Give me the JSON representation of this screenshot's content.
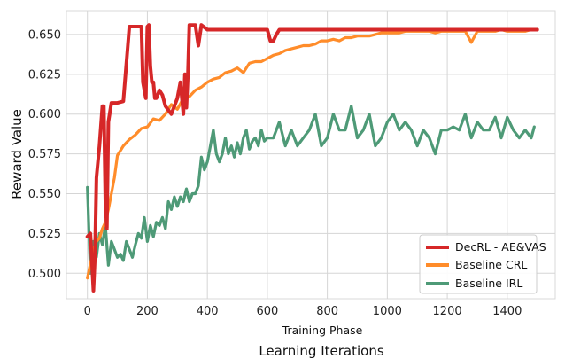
{
  "chart_data": {
    "type": "line",
    "title": "",
    "xlabel": "Training Phase",
    "xlabel_secondary": "Learning Iterations",
    "ylabel": "Reward Value",
    "xlim": [
      -70,
      1560
    ],
    "ylim": [
      0.484,
      0.665
    ],
    "x_ticks": [
      0,
      200,
      400,
      600,
      800,
      1000,
      1200,
      1400
    ],
    "x_tick_labels": [
      "0",
      "200",
      "400",
      "600",
      "800",
      "1000",
      "1200",
      "1400"
    ],
    "y_ticks": [
      0.5,
      0.525,
      0.55,
      0.575,
      0.6,
      0.625,
      0.65
    ],
    "y_tick_labels": [
      "0.500",
      "0.525",
      "0.550",
      "0.575",
      "0.600",
      "0.625",
      "0.650"
    ],
    "grid": true,
    "legend_position": "bottom-right",
    "series": [
      {
        "name": "DecRL - AE&VAS",
        "color": "#d62728",
        "x": [
          0,
          10,
          20,
          25,
          30,
          40,
          50,
          55,
          60,
          65,
          70,
          80,
          90,
          100,
          120,
          140,
          150,
          170,
          180,
          185,
          195,
          200,
          205,
          210,
          215,
          220,
          225,
          230,
          240,
          250,
          260,
          280,
          300,
          310,
          320,
          325,
          330,
          335,
          340,
          350,
          360,
          370,
          380,
          400,
          600,
          610,
          620,
          630,
          640,
          700,
          800,
          1000,
          1200,
          1400,
          1500
        ],
        "y": [
          0.523,
          0.525,
          0.489,
          0.51,
          0.56,
          0.58,
          0.605,
          0.605,
          0.545,
          0.528,
          0.595,
          0.607,
          0.607,
          0.607,
          0.608,
          0.655,
          0.655,
          0.655,
          0.655,
          0.62,
          0.61,
          0.655,
          0.656,
          0.63,
          0.62,
          0.62,
          0.61,
          0.61,
          0.615,
          0.612,
          0.605,
          0.6,
          0.61,
          0.62,
          0.6,
          0.625,
          0.604,
          0.625,
          0.656,
          0.656,
          0.656,
          0.643,
          0.656,
          0.653,
          0.653,
          0.646,
          0.646,
          0.65,
          0.653,
          0.653,
          0.653,
          0.653,
          0.653,
          0.653,
          0.653
        ]
      },
      {
        "name": "Baseline CRL",
        "color": "#ff8c2a",
        "x": [
          0,
          10,
          20,
          30,
          40,
          50,
          60,
          70,
          80,
          90,
          100,
          120,
          140,
          160,
          180,
          200,
          220,
          240,
          260,
          280,
          300,
          320,
          340,
          360,
          380,
          400,
          420,
          440,
          460,
          480,
          500,
          520,
          540,
          560,
          580,
          600,
          620,
          640,
          660,
          680,
          700,
          720,
          740,
          760,
          780,
          800,
          820,
          840,
          860,
          880,
          900,
          920,
          940,
          960,
          980,
          1000,
          1020,
          1040,
          1060,
          1080,
          1100,
          1120,
          1140,
          1160,
          1180,
          1200,
          1220,
          1240,
          1260,
          1280,
          1300,
          1320,
          1340,
          1360,
          1380,
          1400,
          1420,
          1440,
          1460,
          1480,
          1500
        ],
        "y": [
          0.497,
          0.506,
          0.515,
          0.52,
          0.522,
          0.528,
          0.532,
          0.54,
          0.55,
          0.56,
          0.574,
          0.58,
          0.584,
          0.587,
          0.591,
          0.592,
          0.597,
          0.596,
          0.6,
          0.606,
          0.603,
          0.61,
          0.611,
          0.615,
          0.617,
          0.62,
          0.622,
          0.623,
          0.626,
          0.627,
          0.629,
          0.626,
          0.632,
          0.633,
          0.633,
          0.635,
          0.637,
          0.638,
          0.64,
          0.641,
          0.642,
          0.643,
          0.643,
          0.644,
          0.646,
          0.646,
          0.647,
          0.646,
          0.648,
          0.648,
          0.649,
          0.649,
          0.649,
          0.65,
          0.651,
          0.651,
          0.651,
          0.651,
          0.652,
          0.652,
          0.652,
          0.652,
          0.652,
          0.651,
          0.652,
          0.652,
          0.652,
          0.652,
          0.652,
          0.645,
          0.652,
          0.652,
          0.652,
          0.652,
          0.653,
          0.652,
          0.652,
          0.652,
          0.652,
          0.653,
          0.653
        ]
      },
      {
        "name": "Baseline IRL",
        "color": "#4e9a77",
        "x": [
          0,
          10,
          20,
          30,
          40,
          50,
          60,
          70,
          80,
          90,
          100,
          110,
          120,
          130,
          140,
          150,
          160,
          170,
          180,
          190,
          200,
          210,
          220,
          230,
          240,
          250,
          260,
          270,
          280,
          290,
          300,
          310,
          320,
          330,
          340,
          350,
          360,
          370,
          380,
          390,
          400,
          410,
          420,
          430,
          440,
          450,
          460,
          470,
          480,
          490,
          500,
          510,
          520,
          530,
          540,
          550,
          560,
          570,
          580,
          590,
          600,
          620,
          640,
          660,
          680,
          700,
          720,
          740,
          760,
          780,
          800,
          820,
          840,
          860,
          880,
          900,
          920,
          940,
          960,
          980,
          1000,
          1020,
          1040,
          1060,
          1080,
          1100,
          1120,
          1140,
          1160,
          1180,
          1200,
          1220,
          1240,
          1260,
          1280,
          1300,
          1320,
          1340,
          1360,
          1380,
          1400,
          1420,
          1440,
          1460,
          1480,
          1490
        ],
        "y": [
          0.554,
          0.5,
          0.52,
          0.51,
          0.525,
          0.518,
          0.53,
          0.505,
          0.52,
          0.515,
          0.51,
          0.512,
          0.508,
          0.52,
          0.515,
          0.51,
          0.518,
          0.525,
          0.522,
          0.535,
          0.52,
          0.53,
          0.523,
          0.532,
          0.53,
          0.535,
          0.528,
          0.545,
          0.54,
          0.548,
          0.542,
          0.548,
          0.545,
          0.553,
          0.545,
          0.55,
          0.55,
          0.555,
          0.573,
          0.565,
          0.57,
          0.58,
          0.59,
          0.575,
          0.57,
          0.575,
          0.585,
          0.575,
          0.58,
          0.573,
          0.582,
          0.575,
          0.585,
          0.59,
          0.578,
          0.583,
          0.585,
          0.58,
          0.59,
          0.583,
          0.585,
          0.585,
          0.595,
          0.58,
          0.59,
          0.58,
          0.585,
          0.59,
          0.6,
          0.58,
          0.585,
          0.6,
          0.59,
          0.59,
          0.605,
          0.585,
          0.59,
          0.6,
          0.58,
          0.585,
          0.595,
          0.6,
          0.59,
          0.595,
          0.59,
          0.58,
          0.59,
          0.585,
          0.575,
          0.59,
          0.59,
          0.592,
          0.59,
          0.6,
          0.585,
          0.595,
          0.59,
          0.59,
          0.598,
          0.585,
          0.598,
          0.59,
          0.585,
          0.59,
          0.585,
          0.592
        ]
      }
    ]
  }
}
